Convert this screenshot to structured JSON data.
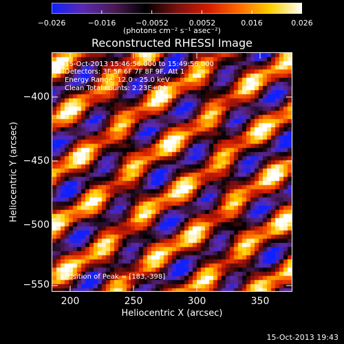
{
  "colorbar": {
    "ticks": [
      "−0.026",
      "−0.016",
      "−0.0052",
      "0.0052",
      "0.016",
      "0.026"
    ],
    "units": "(photons cm⁻² s⁻¹ asec⁻²)",
    "colors": [
      "#1020ff",
      "#5a2ab0",
      "#4a1a55",
      "#000000",
      "#7a1010",
      "#d21c00",
      "#ff6a00",
      "#ffd000",
      "#ffffff"
    ]
  },
  "title": "Reconstructed RHESSI Image",
  "info": {
    "time_range": "15-Oct-2013 15:46:56.000 to 15:49:56.000",
    "detectors": "Detectors: 3F 5F 6F 7F 8F 9F, Att 1",
    "energy_range": "Energy Range: 12.0 - 25.0 keV",
    "clean": "Clean     Total counts: 2.23E+04",
    "peak": "Position of Peak = [183,-398]"
  },
  "axes": {
    "xlabel": "Heliocentric X (arcsec)",
    "ylabel": "Heliocentric Y (arcsec)",
    "xticks": [
      "200",
      "250",
      "300",
      "350"
    ],
    "yticks": [
      "−400",
      "−450",
      "−500",
      "−550"
    ]
  },
  "footer": "15-Oct-2013 19:43"
}
